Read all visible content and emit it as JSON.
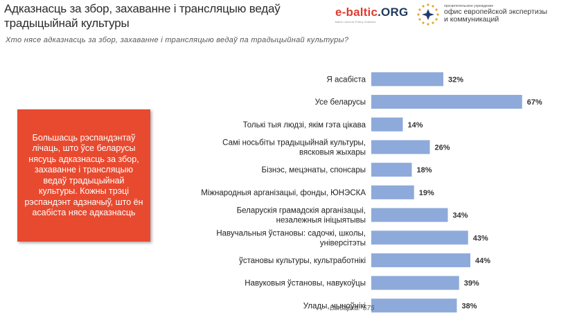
{
  "header": {
    "title": "Адказнасць за збор, захаванне і трансляцыю ведаў традыцыйнай культуры",
    "subtitle": "Хто нясе адказнасць за збор, захаванне і трансляцыю ведаў па традыцыйнай культуры?"
  },
  "logos": {
    "ebaltic_word": "e-baltic",
    "ebaltic_org": ".ORG",
    "ebaltic_tag": "Baltic Internet Policy Initiative",
    "partner_small": "просветительское учреждение",
    "partner_line1": "офис европейской экспертизы",
    "partner_line2": "и коммуникаций"
  },
  "callout": {
    "text": "Большасць рэспандэнтаў лічаць, што ўсе беларусы нясуць адказнасць за збор, захаванне і трансляцыю ведаў традыцыйнай культуры. Кожны трэці рэспандэнт адзначыў, што ён асабіста нясе адказнасць"
  },
  "sample": {
    "label": "Выбарка:",
    "n": "575"
  },
  "chart_data": {
    "type": "bar",
    "orientation": "horizontal",
    "categories": [
      [
        "Я асабіста"
      ],
      [
        "Усе беларусы"
      ],
      [
        "Толькі тыя людзі, якім гэта цікава"
      ],
      [
        "Самі носьбіты традыцыйнай культуры,",
        "вясковыя жыхары"
      ],
      [
        "Бізнэс, мецэнаты, спонсары"
      ],
      [
        "Міжнародныя арганізацыі, фонды, ЮНЭСКА"
      ],
      [
        "Беларускія грамадскія арганізацыі,",
        "незалежныя ініцыятывы"
      ],
      [
        "Навучальныя ўстановы: садочкі, школы,",
        "універсітэты"
      ],
      [
        "ўстановы культуры, культработнікі"
      ],
      [
        "Навуковыя ўстановы, навукоўцы"
      ],
      [
        "Улады, чыноўнікі"
      ]
    ],
    "values": [
      32,
      67,
      14,
      26,
      18,
      19,
      34,
      43,
      44,
      39,
      38
    ],
    "value_labels": [
      "32%",
      "67%",
      "14%",
      "26%",
      "18%",
      "19%",
      "34%",
      "43%",
      "44%",
      "39%",
      "38%"
    ],
    "xlim": [
      0,
      100
    ],
    "bar_color": "#8eaadb",
    "grid": false,
    "legend": "none"
  }
}
